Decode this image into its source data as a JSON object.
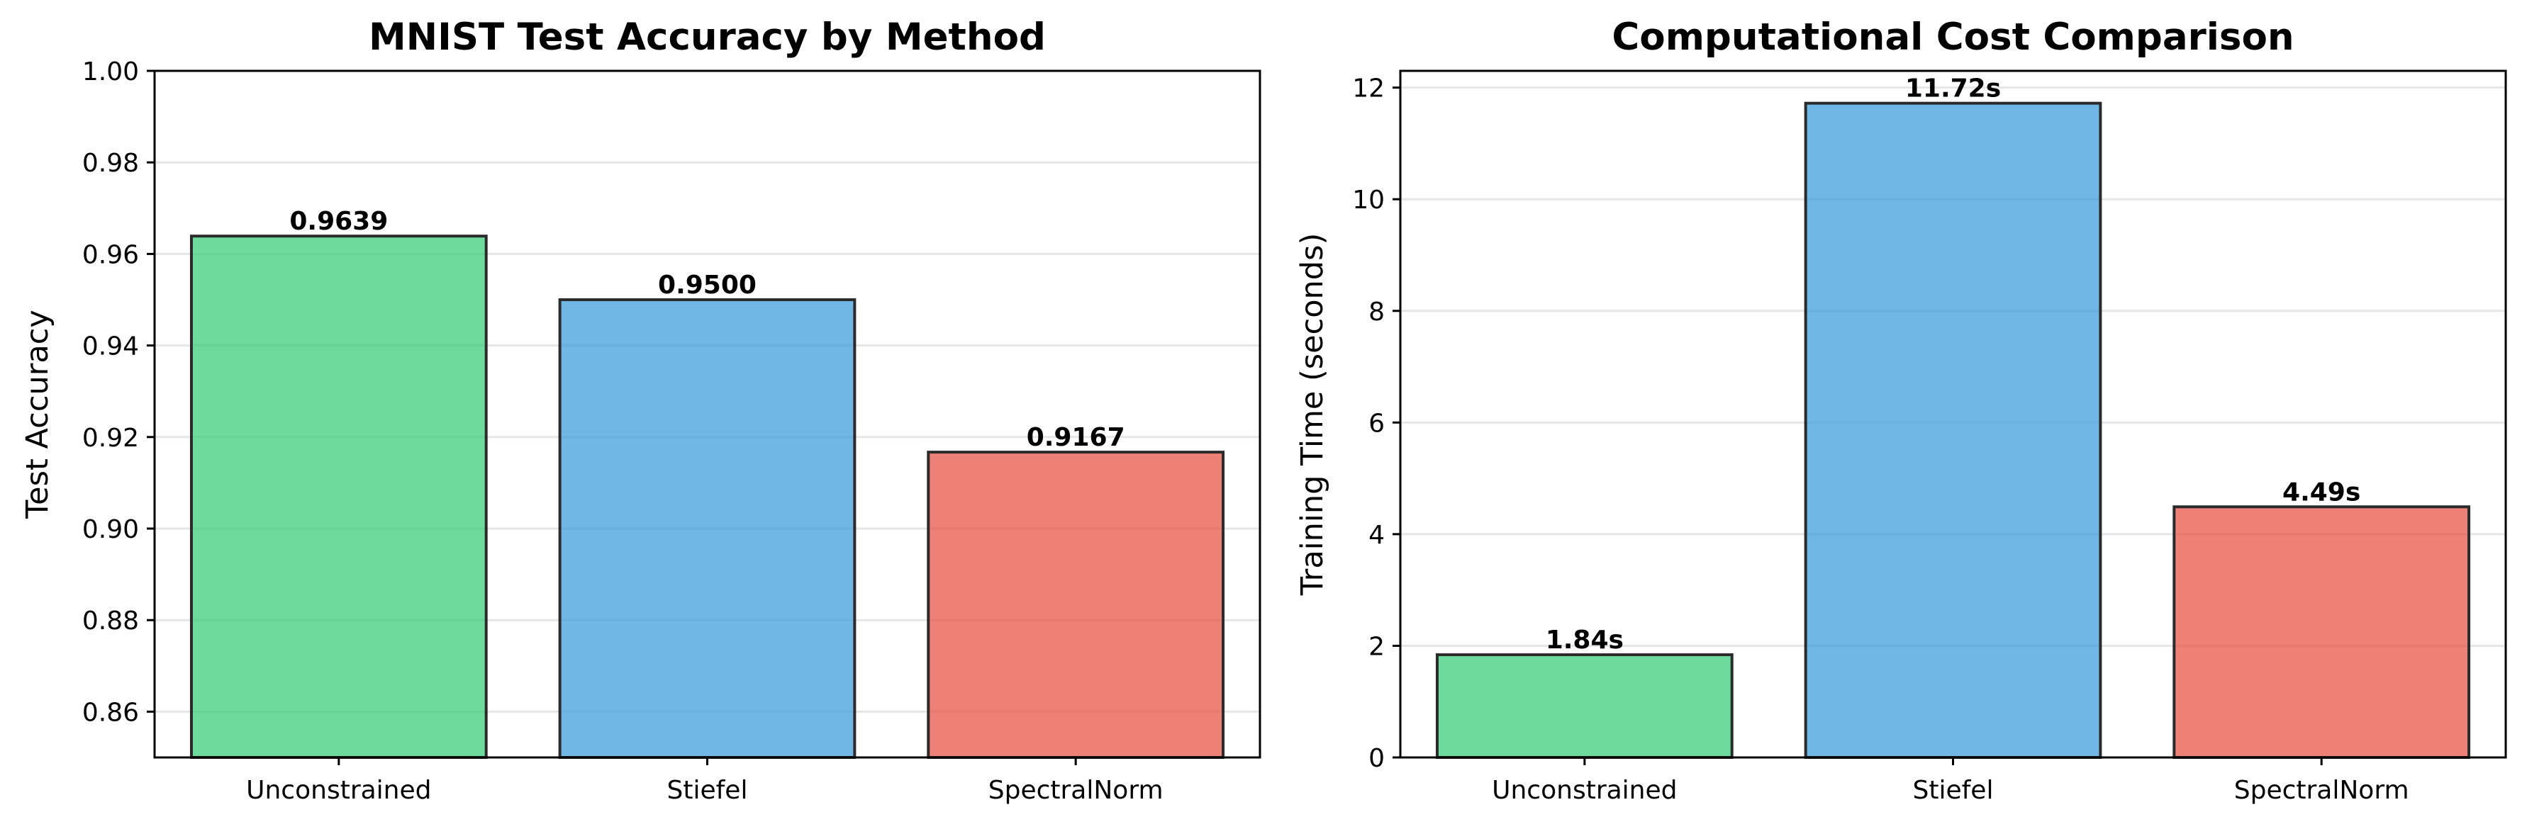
{
  "chart_data": [
    {
      "type": "bar",
      "title": "MNIST Test Accuracy by Method",
      "xlabel": "",
      "ylabel": "Test Accuracy",
      "categories": [
        "Unconstrained",
        "Stiefel",
        "SpectralNorm"
      ],
      "values": [
        0.9639,
        0.95,
        0.9167
      ],
      "data_labels": [
        "0.9639",
        "0.9500",
        "0.9167"
      ],
      "ylim": [
        0.85,
        1.0
      ],
      "yticks": [
        0.86,
        0.88,
        0.9,
        0.92,
        0.94,
        0.96,
        0.98,
        1.0
      ],
      "ytick_labels": [
        "0.86",
        "0.88",
        "0.90",
        "0.92",
        "0.94",
        "0.96",
        "0.98",
        "1.00"
      ],
      "grid": "y",
      "colors": [
        "#2ecc71",
        "#3498db",
        "#e74c3c"
      ]
    },
    {
      "type": "bar",
      "title": "Computational Cost Comparison",
      "xlabel": "",
      "ylabel": "Training Time (seconds)",
      "categories": [
        "Unconstrained",
        "Stiefel",
        "SpectralNorm"
      ],
      "values": [
        1.84,
        11.72,
        4.49
      ],
      "data_labels": [
        "1.84s",
        "11.72s",
        "4.49s"
      ],
      "ylim": [
        0,
        12.3
      ],
      "yticks": [
        0,
        2,
        4,
        6,
        8,
        10,
        12
      ],
      "ytick_labels": [
        "0",
        "2",
        "4",
        "6",
        "8",
        "10",
        "12"
      ],
      "grid": "y",
      "colors": [
        "#2ecc71",
        "#3498db",
        "#e74c3c"
      ]
    }
  ]
}
